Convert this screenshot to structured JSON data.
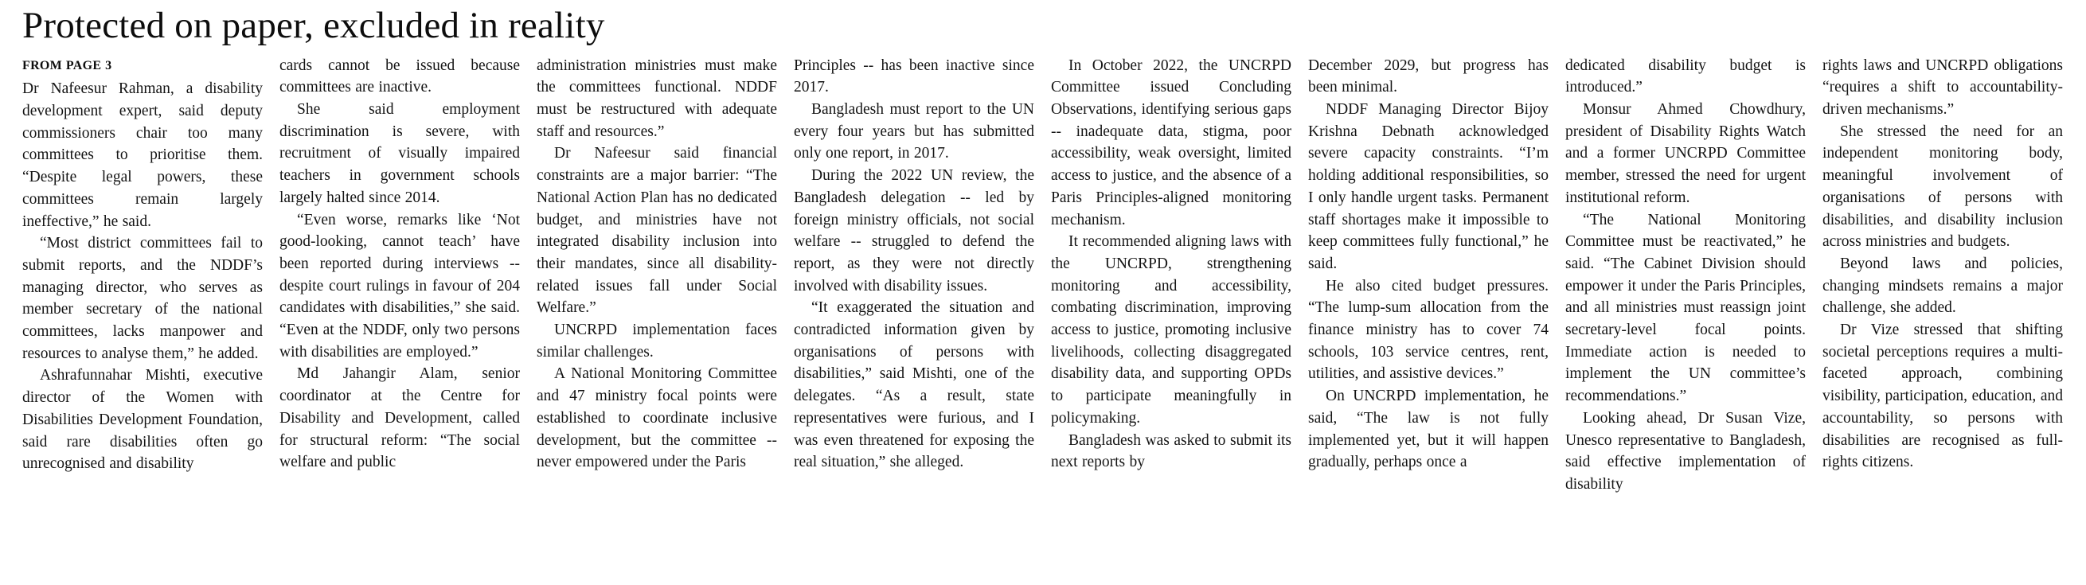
{
  "page": {
    "title": "Protected on paper, excluded in reality",
    "kicker": "FROM PAGE 3"
  },
  "article": {
    "columns": [
      {
        "first_indent": false,
        "paragraphs": [
          "Dr Nafeesur Rahman, a disability development expert, said deputy commissioners chair too many committees to prioritise them. “Despite legal powers, these committees remain largely ineffective,” he said.",
          "“Most district committees fail to submit reports, and the NDDF’s managing director, who serves as member secretary of the national committees, lacks manpower and resources to analyse them,” he added.",
          "Ashrafunnahar Mishti, executive director of the Women with Disabilities Development Foundation, said rare disabilities often go unrecognised and disability"
        ]
      },
      {
        "first_indent": false,
        "paragraphs": [
          "cards cannot be issued because committees are inactive.",
          "She said employment discrimination is severe, with recruitment of visually impaired teachers in government schools largely halted since 2014.",
          "“Even worse, remarks like ‘Not good-looking, cannot teach’ have been reported during interviews -- despite court rulings in favour of 204 candidates with disabilities,” she said. “Even at the NDDF, only two persons with disabilities are employed.”",
          "Md Jahangir Alam, senior coordinator at the Centre for Disability and Development, called for structural reform: “The social welfare and public"
        ]
      },
      {
        "first_indent": false,
        "paragraphs": [
          "administration ministries must make the committees functional. NDDF must be restructured with adequate staff and resources.”",
          "Dr Nafeesur said financial constraints are a major barrier: “The National Action Plan has no dedicated budget, and ministries have not integrated disability inclusion into their mandates, since all disability-related issues fall under Social Welfare.”",
          "UNCRPD implementation faces similar challenges.",
          "A National Monitoring Committee and 47 ministry focal points were established to coordinate inclusive development, but the committee -- never empowered under the Paris"
        ]
      },
      {
        "first_indent": false,
        "paragraphs": [
          "Principles -- has been inactive since 2017.",
          "Bangladesh must report to the UN every four years but has submitted only one report, in 2017.",
          "During the 2022 UN review, the Bangladesh delegation -- led by foreign ministry officials, not social welfare -- struggled to defend the report, as they were not directly involved with disability issues.",
          "“It exaggerated the situation and contradicted information given by organisations of persons with disabilities,” said Mishti, one of the delegates. “As a result, state representatives were furious, and I was even threatened for exposing the real situation,” she alleged."
        ]
      },
      {
        "first_indent": true,
        "paragraphs": [
          "In October 2022, the UNCRPD Committee issued Concluding Observations, identifying serious gaps -- inadequate data, stigma, poor accessibility, weak oversight, limited access to justice, and the absence of a Paris Principles-aligned monitoring mechanism.",
          "It recommended aligning laws with the UNCRPD, strengthening monitoring and accessibility, combating discrimination, improving access to justice, promoting inclusive livelihoods, collecting disaggregated disability data, and supporting OPDs to participate meaningfully in policymaking.",
          "Bangladesh was asked to submit its next reports by"
        ]
      },
      {
        "first_indent": false,
        "paragraphs": [
          "December 2029, but progress has been minimal.",
          "NDDF Managing Director Bijoy Krishna Debnath acknowledged severe capacity constraints. “I’m holding additional responsibilities, so I only handle urgent tasks. Permanent staff shortages make it impossible to keep committees fully functional,” he said.",
          "He also cited budget pressures. “The lump-sum allocation from the finance ministry has to cover 74 schools, 103 service centres, rent, utilities, and assistive devices.”",
          "On UNCRPD implementation, he said, “The law is not fully implemented yet, but it will happen gradually, perhaps once a"
        ]
      },
      {
        "first_indent": false,
        "paragraphs": [
          "dedicated disability budget is introduced.”",
          "Monsur Ahmed Chowdhury, president of Disability Rights Watch and a former UNCRPD Committee member, stressed the need for urgent institutional reform.",
          "“The National Monitoring Committee must be reactivated,” he said. “The Cabinet Division should empower it under the Paris Principles, and all ministries must reassign joint secretary-level focal points. Immediate action is needed to implement the UN committee’s recommendations.”",
          "Looking ahead, Dr Susan Vize, Unesco representative to Bangladesh, said effective implementation of disability"
        ]
      },
      {
        "first_indent": false,
        "paragraphs": [
          "rights laws and UNCRPD obligations “requires a shift to accountability-driven mechanisms.”",
          "She stressed the need for an independent monitoring body, meaningful involvement of organisations of persons with disabilities, and disability inclusion across ministries and budgets.",
          "Beyond laws and policies, changing mindsets remains a major challenge, she added.",
          "Dr Vize stressed that shifting societal perceptions requires a multi-faceted approach, combining visibility, participation, education, and accountability, so persons with disabilities are recognised as full-rights citizens."
        ]
      }
    ]
  }
}
